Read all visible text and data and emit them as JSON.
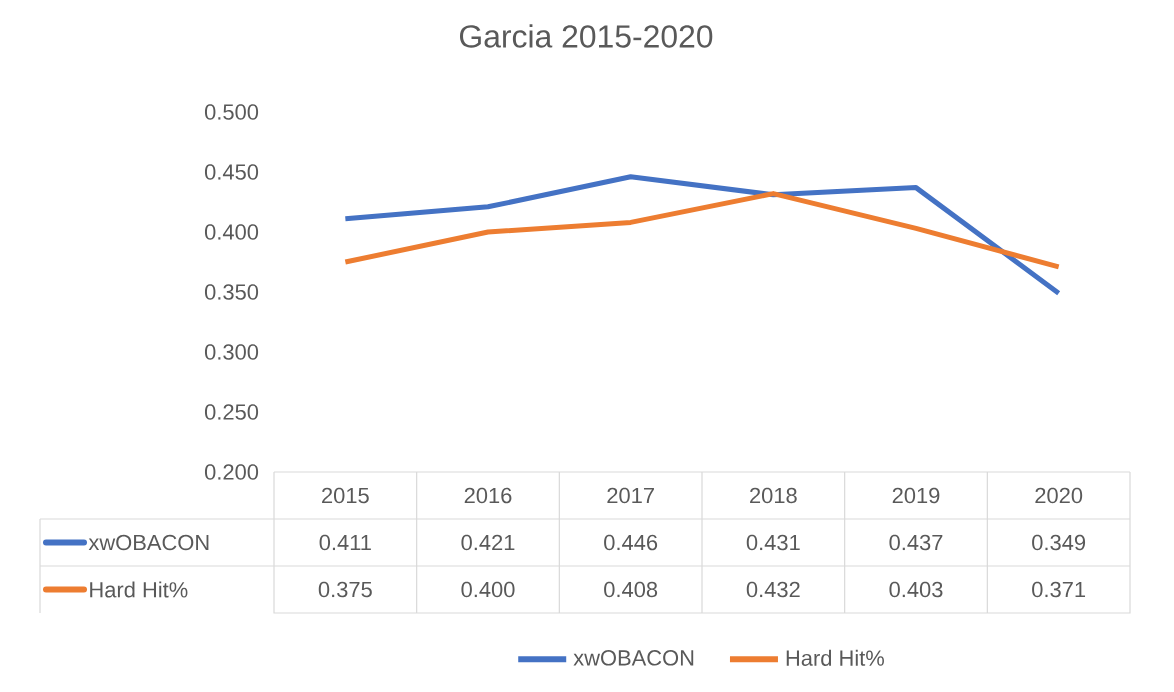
{
  "chart_data": {
    "type": "line",
    "title": "Garcia 2015-2020",
    "categories": [
      "2015",
      "2016",
      "2017",
      "2018",
      "2019",
      "2020"
    ],
    "series": [
      {
        "name": "xwOBACON",
        "color": "#4472c4",
        "values": [
          0.411,
          0.421,
          0.446,
          0.431,
          0.437,
          0.349
        ],
        "value_labels": [
          "0.411",
          "0.421",
          "0.446",
          "0.431",
          "0.437",
          "0.349"
        ]
      },
      {
        "name": "Hard Hit%",
        "color": "#ed7d31",
        "values": [
          0.375,
          0.4,
          0.408,
          0.432,
          0.403,
          0.371
        ],
        "value_labels": [
          "0.375",
          "0.400",
          "0.408",
          "0.432",
          "0.403",
          "0.371"
        ]
      }
    ],
    "ylim": [
      0.2,
      0.5
    ],
    "yticks": [
      {
        "value": 0.2,
        "label": "0.200"
      },
      {
        "value": 0.25,
        "label": "0.250"
      },
      {
        "value": 0.3,
        "label": "0.300"
      },
      {
        "value": 0.35,
        "label": "0.350"
      },
      {
        "value": 0.4,
        "label": "0.400"
      },
      {
        "value": 0.45,
        "label": "0.450"
      },
      {
        "value": 0.5,
        "label": "0.500"
      }
    ],
    "marker": "none",
    "legend": "bottom"
  }
}
